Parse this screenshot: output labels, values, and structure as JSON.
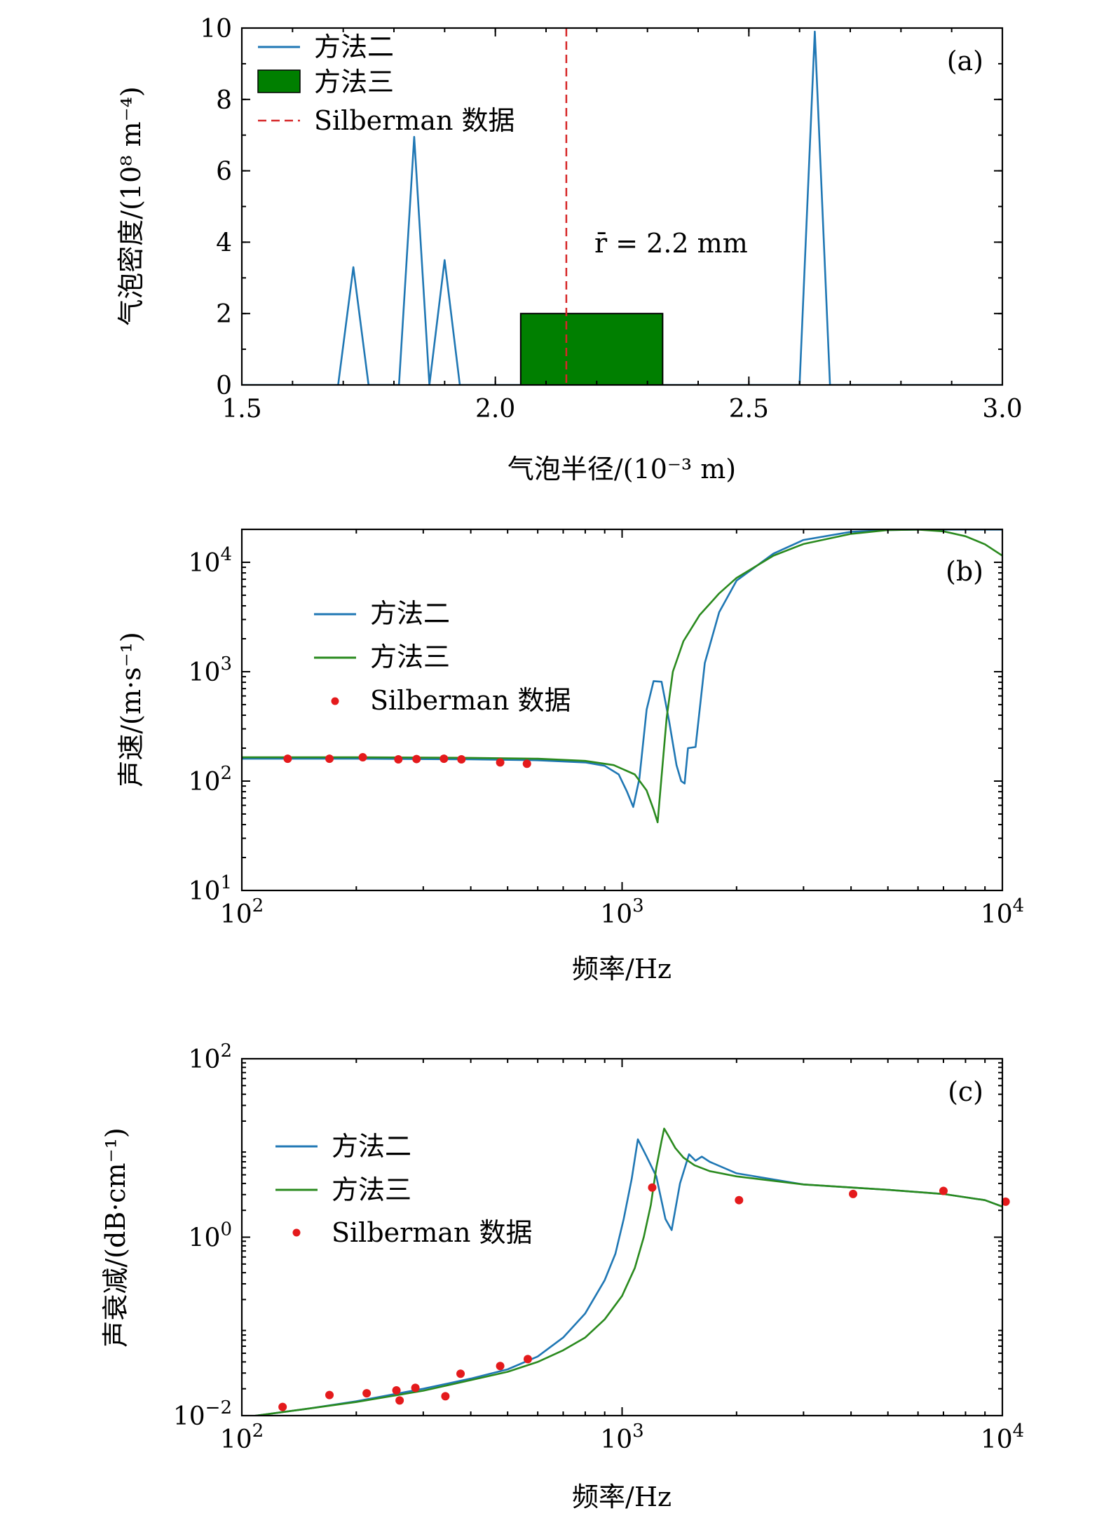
{
  "chart_data": [
    {
      "id": "a",
      "type": "line",
      "panel_label": "(a)",
      "xlabel": "气泡半径/(10⁻³ m)",
      "ylabel": "气泡密度/(10⁸ m⁻⁴)",
      "xscale": "linear",
      "yscale": "linear",
      "xlim": [
        1.5,
        3.0
      ],
      "ylim": [
        0,
        10
      ],
      "xticks": [
        1.5,
        2.0,
        2.5,
        3.0
      ],
      "xtick_labels": [
        "1.5",
        "2.0",
        "2.5",
        "3.0"
      ],
      "yticks": [
        0,
        2,
        4,
        6,
        8,
        10
      ],
      "ytick_labels": [
        "0",
        "2",
        "4",
        "6",
        "8",
        "10"
      ],
      "legend_position": "top-left",
      "annotation": "r̄ = 2.2 mm",
      "series": [
        {
          "name": "方法二",
          "kind": "line",
          "color": "#1f77b4",
          "x": [
            1.5,
            1.69,
            1.72,
            1.75,
            1.81,
            1.84,
            1.87,
            1.9,
            1.93,
            2.6,
            2.63,
            2.66,
            3.0
          ],
          "y": [
            0,
            0,
            3.3,
            0,
            0,
            6.95,
            0,
            3.5,
            0,
            0,
            9.9,
            0,
            0
          ]
        },
        {
          "name": "方法三",
          "kind": "bar",
          "color": "#007f00",
          "x0": 2.05,
          "x1": 2.33,
          "value": 2.0
        },
        {
          "name": "Silberman 数据",
          "kind": "vline",
          "color": "#d62728",
          "x": 2.14
        }
      ]
    },
    {
      "id": "b",
      "type": "line",
      "panel_label": "(b)",
      "xlabel": "频率/Hz",
      "ylabel": "声速/(m·s⁻¹)",
      "xscale": "log",
      "yscale": "log",
      "xlim": [
        100,
        10000
      ],
      "ylim": [
        10,
        20000
      ],
      "xticks": [
        100,
        1000,
        10000
      ],
      "xtick_base": [
        "10",
        "10",
        "10"
      ],
      "xtick_exp": [
        "2",
        "3",
        "4"
      ],
      "yticks": [
        10,
        100,
        1000,
        10000
      ],
      "ytick_base": [
        "10",
        "10",
        "10",
        "10"
      ],
      "ytick_exp": [
        "1",
        "2",
        "3",
        "4"
      ],
      "legend_position": "upper-left",
      "series": [
        {
          "name": "方法二",
          "kind": "line",
          "color": "#1f77b4",
          "x": [
            100,
            200,
            400,
            600,
            800,
            900,
            980,
            1030,
            1070,
            1110,
            1160,
            1210,
            1270,
            1330,
            1390,
            1430,
            1460,
            1490,
            1560,
            1650,
            1800,
            2000,
            2500,
            3000,
            4000,
            5000,
            6000,
            7000,
            8500,
            10000
          ],
          "y": [
            160,
            160,
            158,
            155,
            148,
            138,
            115,
            80,
            58,
            105,
            450,
            820,
            810,
            350,
            140,
            100,
            95,
            200,
            205,
            1200,
            3500,
            6800,
            12000,
            16000,
            19000,
            19700,
            19900,
            19900,
            19900,
            19900
          ]
        },
        {
          "name": "方法三",
          "kind": "line",
          "color": "#2a8a1e",
          "x": [
            100,
            200,
            400,
            600,
            800,
            950,
            1080,
            1160,
            1210,
            1240,
            1270,
            1310,
            1360,
            1450,
            1600,
            1800,
            2000,
            2500,
            3000,
            4000,
            5000,
            6000,
            7000,
            8000,
            9000,
            10000
          ],
          "y": [
            165,
            165,
            163,
            160,
            153,
            140,
            115,
            82,
            55,
            42,
            110,
            380,
            1000,
            1900,
            3300,
            5200,
            7200,
            11500,
            14700,
            18200,
            19700,
            19900,
            19200,
            17300,
            14600,
            11500
          ]
        },
        {
          "name": "Silberman 数据",
          "kind": "scatter",
          "color": "#e41a1c",
          "x": [
            132,
            170,
            208,
            258,
            288,
            340,
            378,
            478,
            562
          ],
          "y": [
            160,
            160,
            165,
            158,
            159,
            160,
            158,
            148,
            144
          ]
        }
      ]
    },
    {
      "id": "c",
      "type": "line",
      "panel_label": "(c)",
      "xlabel": "频率/Hz",
      "ylabel": "声衰减/(dB·cm⁻¹)",
      "xscale": "log",
      "yscale": "log",
      "xlim": [
        100,
        10000
      ],
      "ylim": [
        0.01,
        100
      ],
      "xticks": [
        100,
        1000,
        10000
      ],
      "xtick_base": [
        "10",
        "10",
        "10"
      ],
      "xtick_exp": [
        "2",
        "3",
        "4"
      ],
      "yticks": [
        0.01,
        1,
        100
      ],
      "ytick_base": [
        "10",
        "10",
        "10"
      ],
      "ytick_exp": [
        "−2",
        "0",
        "2"
      ],
      "legend_position": "upper-left",
      "series": [
        {
          "name": "方法二",
          "kind": "line",
          "color": "#1f77b4",
          "x": [
            100,
            150,
            200,
            300,
            400,
            500,
            600,
            700,
            800,
            900,
            960,
            1010,
            1060,
            1100,
            1160,
            1230,
            1300,
            1350,
            1420,
            1500,
            1560,
            1620,
            1700,
            2000,
            3000,
            5000,
            7000,
            9000,
            10000
          ],
          "y": [
            0.0095,
            0.012,
            0.0145,
            0.02,
            0.026,
            0.033,
            0.046,
            0.075,
            0.14,
            0.33,
            0.65,
            1.6,
            4.5,
            12.5,
            8.0,
            4.8,
            1.6,
            1.2,
            4.0,
            8.5,
            7.2,
            8.0,
            7.0,
            5.2,
            3.9,
            3.4,
            3.05,
            2.6,
            2.2
          ]
        },
        {
          "name": "方法三",
          "kind": "line",
          "color": "#2a8a1e",
          "x": [
            100,
            150,
            200,
            300,
            400,
            500,
            600,
            700,
            800,
            900,
            1000,
            1080,
            1140,
            1190,
            1230,
            1270,
            1290,
            1320,
            1380,
            1450,
            1550,
            1700,
            2000,
            3000,
            5000,
            7000,
            9000,
            10000
          ],
          "y": [
            0.0095,
            0.012,
            0.0142,
            0.019,
            0.025,
            0.031,
            0.04,
            0.054,
            0.075,
            0.12,
            0.22,
            0.45,
            1.0,
            2.3,
            6.0,
            12.0,
            16.5,
            14.0,
            10.0,
            7.8,
            6.4,
            5.5,
            4.8,
            3.9,
            3.4,
            3.05,
            2.6,
            2.2
          ]
        },
        {
          "name": "Silberman 数据",
          "kind": "scatter",
          "color": "#e41a1c",
          "x": [
            128,
            170,
            213,
            255,
            260,
            286,
            343,
            376,
            478,
            565,
            1200,
            2030,
            4050,
            7000,
            10200
          ],
          "y": [
            0.0125,
            0.017,
            0.0178,
            0.0192,
            0.0148,
            0.0205,
            0.0165,
            0.0295,
            0.036,
            0.043,
            3.6,
            2.6,
            3.05,
            3.3,
            2.5
          ]
        }
      ]
    }
  ]
}
